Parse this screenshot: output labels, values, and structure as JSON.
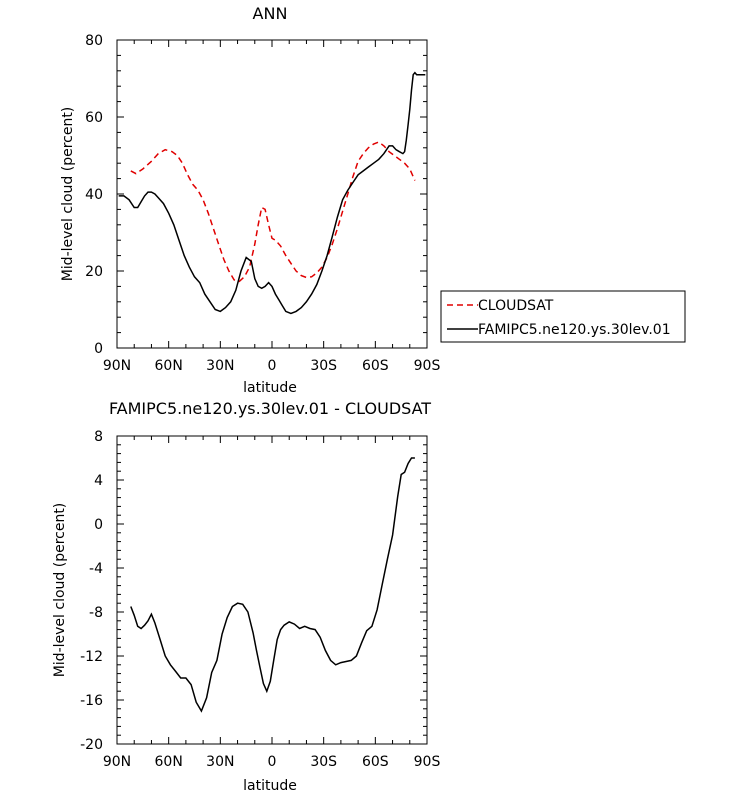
{
  "chart_data": [
    {
      "type": "line",
      "title": "ANN",
      "xlabel": "latitude",
      "ylabel": "Mid-level cloud (percent)",
      "xlim": [
        -90,
        90
      ],
      "ylim": [
        0,
        80
      ],
      "x_ticks": [
        -90,
        -60,
        -30,
        0,
        30,
        60,
        90
      ],
      "x_tick_labels": [
        "90N",
        "60N",
        "30N",
        "0",
        "30S",
        "60S",
        "90S"
      ],
      "y_ticks": [
        0,
        20,
        40,
        60,
        80
      ],
      "y_tick_labels": [
        "0",
        "20",
        "40",
        "60",
        "80"
      ],
      "legend": {
        "position": "right",
        "entries": [
          "CLOUDSAT",
          "FAMIPC5.ne120.ys.30lev.01"
        ]
      },
      "series": [
        {
          "name": "CLOUDSAT",
          "color": "#e00000",
          "dash": true,
          "x": [
            -82,
            -79,
            -75,
            -70,
            -66,
            -62,
            -58,
            -55,
            -52,
            -49,
            -46,
            -43,
            -40,
            -37,
            -34,
            -31,
            -28,
            -25,
            -22,
            -19,
            -16,
            -13,
            -10,
            -8,
            -6,
            -4,
            -2,
            0,
            2,
            5,
            8,
            11,
            14,
            17,
            20,
            23,
            26,
            29,
            32,
            35,
            38,
            41,
            44,
            47,
            50,
            53,
            56,
            59,
            62,
            65,
            68,
            71,
            74,
            77,
            80,
            83
          ],
          "y": [
            46,
            45.3,
            46.5,
            48.5,
            50.5,
            51.5,
            51,
            50,
            48,
            45,
            42.5,
            41,
            38.5,
            35,
            31,
            27,
            23,
            20,
            17.7,
            17.3,
            18.5,
            21,
            27,
            32,
            36.5,
            36,
            32,
            28.5,
            28,
            26.5,
            24,
            22,
            20,
            18.8,
            18.3,
            18.5,
            19.5,
            21,
            23.5,
            27,
            31,
            35.5,
            40,
            44.5,
            48.5,
            50.5,
            52,
            53,
            53.5,
            52.5,
            51,
            50,
            49,
            48,
            46.5,
            43.5
          ]
        },
        {
          "name": "FAMIPC5.ne120.ys.30lev.01",
          "color": "#000000",
          "dash": false,
          "x": [
            -89,
            -86,
            -83,
            -80,
            -78,
            -76,
            -74,
            -72,
            -70,
            -68,
            -66,
            -63,
            -60,
            -57,
            -54,
            -51,
            -48,
            -45,
            -42,
            -39,
            -36,
            -33,
            -30,
            -27,
            -24,
            -21,
            -18,
            -15,
            -12,
            -10,
            -8,
            -6,
            -4,
            -2,
            0,
            2,
            4,
            6,
            8,
            11,
            14,
            17,
            20,
            23,
            26,
            29,
            32,
            35,
            38,
            41,
            44,
            47,
            50,
            53,
            56,
            59,
            62,
            65,
            68,
            70,
            72,
            74,
            76,
            77,
            78,
            79,
            80,
            81,
            82,
            83,
            84,
            85,
            86,
            87,
            88,
            89
          ],
          "y": [
            39.5,
            39.5,
            38.5,
            36.5,
            36.5,
            38,
            39.5,
            40.5,
            40.5,
            40,
            39,
            37.5,
            35,
            32,
            28,
            24,
            21,
            18.5,
            17,
            14,
            12,
            10,
            9.5,
            10.5,
            12,
            15,
            20,
            23.5,
            22.5,
            18,
            16,
            15.5,
            16,
            17,
            16,
            14,
            12.5,
            11,
            9.5,
            9,
            9.5,
            10.5,
            12,
            14,
            16.5,
            20,
            24,
            29,
            34,
            38.5,
            41,
            43,
            45,
            46,
            47,
            48,
            49,
            50.5,
            52.5,
            52.5,
            51.5,
            51,
            50.5,
            51,
            54,
            58,
            62,
            67,
            71,
            71.5,
            71,
            71,
            71,
            71,
            71,
            71
          ]
        }
      ]
    },
    {
      "type": "line",
      "title": "FAMIPC5.ne120.ys.30lev.01 - CLOUDSAT",
      "xlabel": "latitude",
      "ylabel": "Mid-level cloud (percent)",
      "xlim": [
        -90,
        90
      ],
      "ylim": [
        -20,
        8
      ],
      "x_ticks": [
        -90,
        -60,
        -30,
        0,
        30,
        60,
        90
      ],
      "x_tick_labels": [
        "90N",
        "60N",
        "30N",
        "0",
        "30S",
        "60S",
        "90S"
      ],
      "y_ticks": [
        -20,
        -16,
        -12,
        -8,
        -4,
        0,
        4,
        8
      ],
      "y_tick_labels": [
        "-20",
        "-16",
        "-12",
        "-8",
        "-4",
        "0",
        "4",
        "8"
      ],
      "series": [
        {
          "name": "FAMIPC5.ne120.ys.30lev.01 - CLOUDSAT",
          "color": "#000000",
          "dash": false,
          "x": [
            -82,
            -80,
            -78,
            -76,
            -74,
            -72,
            -70,
            -68,
            -65,
            -62,
            -59,
            -56,
            -53,
            -50,
            -47,
            -44,
            -41,
            -38,
            -35,
            -32,
            -29,
            -26,
            -23,
            -20,
            -17,
            -14,
            -11,
            -9,
            -7,
            -5,
            -3,
            -1,
            1,
            3,
            5,
            7,
            10,
            13,
            16,
            19,
            22,
            25,
            28,
            31,
            34,
            37,
            40,
            43,
            46,
            49,
            52,
            55,
            58,
            61,
            64,
            67,
            70,
            73,
            75,
            77,
            79,
            81,
            82,
            83
          ],
          "y": [
            -7.5,
            -8.3,
            -9.3,
            -9.5,
            -9.2,
            -8.8,
            -8.2,
            -9,
            -10.5,
            -12,
            -12.8,
            -13.4,
            -14,
            -14,
            -14.6,
            -16.2,
            -17,
            -15.8,
            -13.5,
            -12.4,
            -10,
            -8.5,
            -7.5,
            -7.2,
            -7.3,
            -8,
            -9.9,
            -11.5,
            -13,
            -14.5,
            -15.2,
            -14.3,
            -12.4,
            -10.5,
            -9.6,
            -9.2,
            -8.9,
            -9.1,
            -9.5,
            -9.3,
            -9.5,
            -9.6,
            -10.3,
            -11.5,
            -12.4,
            -12.8,
            -12.6,
            -12.5,
            -12.4,
            -12,
            -10.8,
            -9.7,
            -9.3,
            -7.8,
            -5.5,
            -3.2,
            -1,
            2.5,
            4.5,
            4.7,
            5.5,
            6,
            6,
            6
          ]
        }
      ]
    }
  ]
}
